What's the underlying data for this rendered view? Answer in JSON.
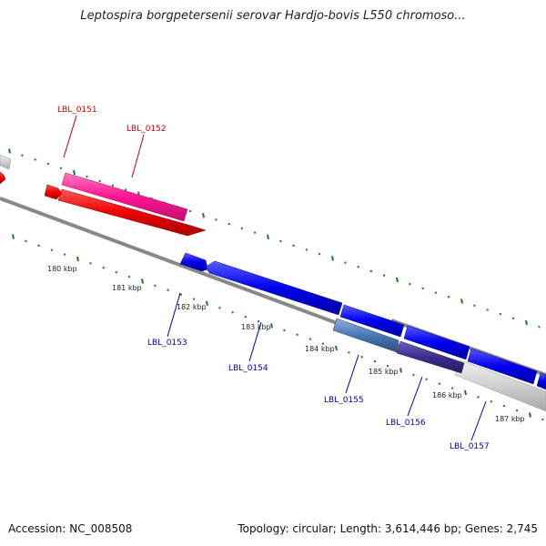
{
  "title": "Leptospira borgpetersenii serovar Hardjo-bovis L550 chromoso...",
  "accession": "Accession: NC_008508",
  "summary": "Topology: circular; Length: 3,614,446 bp; Genes: 2,745",
  "ticks": [
    {
      "label": "180 kbp"
    },
    {
      "label": "181 kbp"
    },
    {
      "label": "182 kbp"
    },
    {
      "label": "183 kbp"
    },
    {
      "label": "184 kbp"
    },
    {
      "label": "185 kbp"
    },
    {
      "label": "186 kbp"
    },
    {
      "label": "187 kbp"
    }
  ],
  "genes": [
    {
      "id": "LBL_0151",
      "color": "#ff1493"
    },
    {
      "id": "LBL_0152",
      "color": "#e00000"
    },
    {
      "id": "LBL_0153",
      "color": "#0000ee"
    },
    {
      "id": "LBL_0154",
      "color": "#0000ee"
    },
    {
      "id": "LBL_0155",
      "color": "#4a6fa5"
    },
    {
      "id": "LBL_0156",
      "color": "#3a2f8a"
    },
    {
      "id": "LBL_0157",
      "color": "#0000ee"
    }
  ],
  "colors": {
    "backbone": "#808080",
    "tick": "#1f7a1f",
    "label_forward": "#c00000",
    "label_reverse": "#0000aa"
  }
}
